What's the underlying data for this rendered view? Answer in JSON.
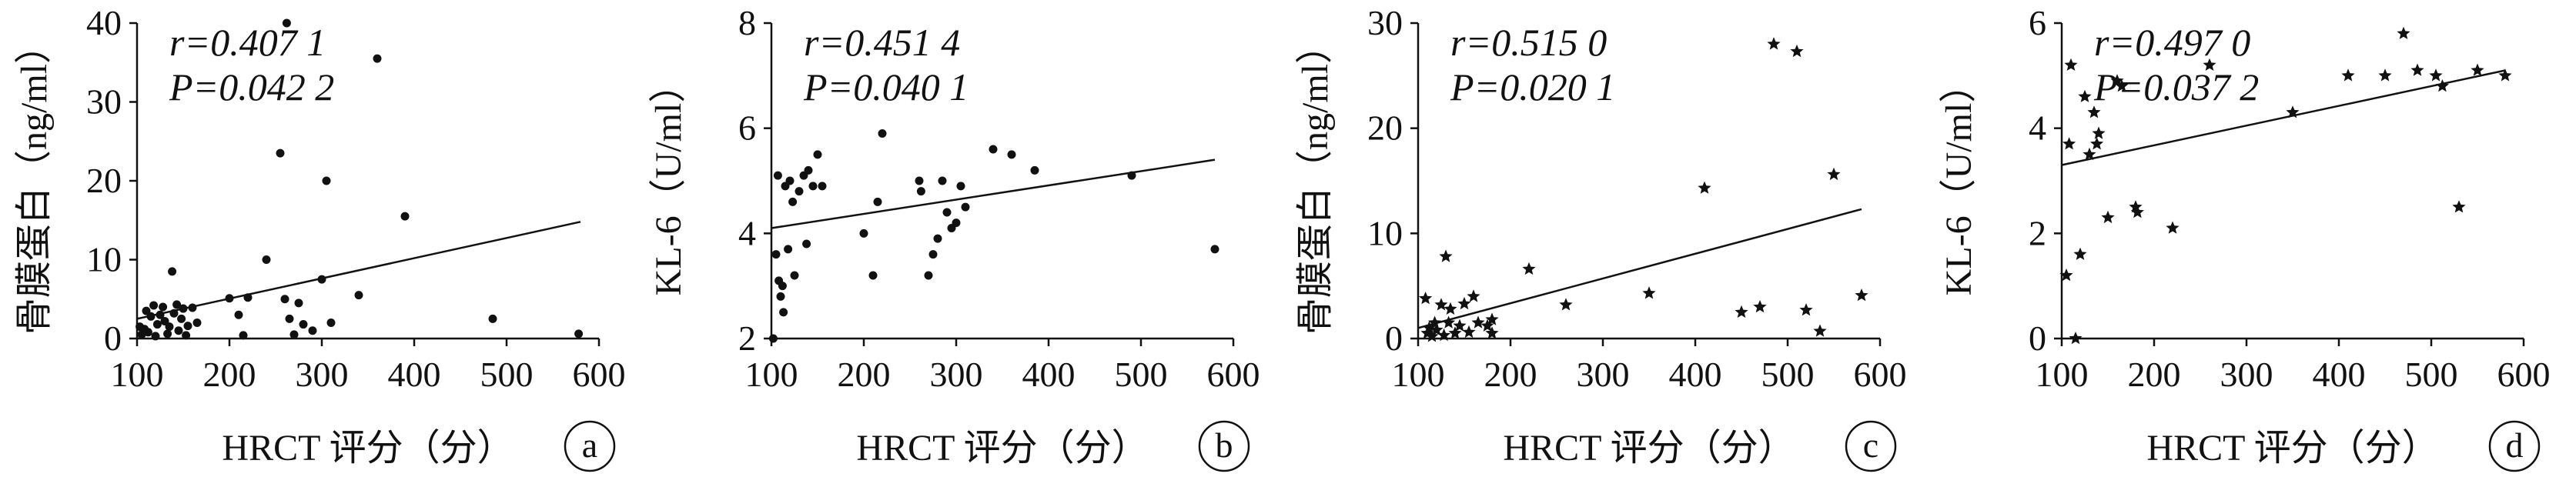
{
  "colors": {
    "ink": "#111111",
    "background": "#ffffff"
  },
  "chart_data": [
    {
      "type": "scatter",
      "panel_label": "a",
      "marker": "dot",
      "xlabel": "HRCT 评分（分）",
      "ylabel": "骨膜蛋白（ng/ml）",
      "stats": [
        "r=0.407 1",
        "P=0.042 2"
      ],
      "xlim": [
        100,
        600
      ],
      "ylim": [
        0,
        40
      ],
      "xticks": [
        "100",
        "200",
        "300",
        "400",
        "500",
        "600"
      ],
      "yticks": [
        "0",
        "10",
        "20",
        "30",
        "40"
      ],
      "trendline": [
        [
          100,
          2.5
        ],
        [
          580,
          14.8
        ]
      ],
      "points": [
        [
          103,
          1.5
        ],
        [
          105,
          0.5
        ],
        [
          108,
          1.2
        ],
        [
          110,
          3.5
        ],
        [
          112,
          0.8
        ],
        [
          115,
          2.8
        ],
        [
          118,
          4.2
        ],
        [
          120,
          0.3
        ],
        [
          122,
          1.8
        ],
        [
          125,
          3.0
        ],
        [
          128,
          4.0
        ],
        [
          130,
          2.2
        ],
        [
          133,
          0.6
        ],
        [
          135,
          1.5
        ],
        [
          138,
          8.5
        ],
        [
          140,
          3.2
        ],
        [
          143,
          4.3
        ],
        [
          145,
          1.0
        ],
        [
          148,
          2.5
        ],
        [
          150,
          3.8
        ],
        [
          153,
          0.4
        ],
        [
          155,
          1.6
        ],
        [
          160,
          3.9
        ],
        [
          165,
          2.0
        ],
        [
          200,
          5.1
        ],
        [
          210,
          3.0
        ],
        [
          215,
          0.4
        ],
        [
          220,
          5.2
        ],
        [
          240,
          10.0
        ],
        [
          255,
          23.5
        ],
        [
          260,
          5.0
        ],
        [
          262,
          40.0
        ],
        [
          265,
          2.5
        ],
        [
          270,
          0.5
        ],
        [
          275,
          4.5
        ],
        [
          280,
          1.8
        ],
        [
          290,
          1.0
        ],
        [
          300,
          7.5
        ],
        [
          305,
          20.0
        ],
        [
          310,
          2.0
        ],
        [
          340,
          5.5
        ],
        [
          360,
          35.5
        ],
        [
          390,
          15.5
        ],
        [
          485,
          2.5
        ],
        [
          578,
          0.6
        ]
      ]
    },
    {
      "type": "scatter",
      "panel_label": "b",
      "marker": "dot",
      "xlabel": "HRCT 评分（分）",
      "ylabel": "KL-6（U/ml）",
      "stats": [
        "r=0.451 4",
        "P=0.040 1"
      ],
      "xlim": [
        100,
        600
      ],
      "ylim": [
        2,
        8
      ],
      "xticks": [
        "100",
        "200",
        "300",
        "400",
        "500",
        "600"
      ],
      "yticks": [
        "2",
        "4",
        "6",
        "8"
      ],
      "trendline": [
        [
          100,
          4.1
        ],
        [
          580,
          5.4
        ]
      ],
      "points": [
        [
          102,
          2.0
        ],
        [
          105,
          3.6
        ],
        [
          107,
          5.1
        ],
        [
          108,
          3.1
        ],
        [
          110,
          2.8
        ],
        [
          112,
          3.0
        ],
        [
          113,
          2.5
        ],
        [
          115,
          4.9
        ],
        [
          118,
          3.7
        ],
        [
          120,
          5.0
        ],
        [
          123,
          4.6
        ],
        [
          125,
          3.2
        ],
        [
          130,
          4.8
        ],
        [
          135,
          5.1
        ],
        [
          138,
          3.8
        ],
        [
          140,
          5.2
        ],
        [
          145,
          4.9
        ],
        [
          150,
          5.5
        ],
        [
          155,
          4.9
        ],
        [
          200,
          4.0
        ],
        [
          210,
          3.2
        ],
        [
          215,
          4.6
        ],
        [
          220,
          5.9
        ],
        [
          260,
          5.0
        ],
        [
          262,
          4.8
        ],
        [
          270,
          3.2
        ],
        [
          275,
          3.6
        ],
        [
          280,
          3.9
        ],
        [
          285,
          5.0
        ],
        [
          290,
          4.4
        ],
        [
          295,
          4.1
        ],
        [
          300,
          4.2
        ],
        [
          305,
          4.9
        ],
        [
          310,
          4.5
        ],
        [
          340,
          5.6
        ],
        [
          360,
          5.5
        ],
        [
          385,
          5.2
        ],
        [
          490,
          5.1
        ],
        [
          580,
          3.7
        ]
      ]
    },
    {
      "type": "scatter",
      "panel_label": "c",
      "marker": "star",
      "xlabel": "HRCT 评分（分）",
      "ylabel": "骨膜蛋白（ng/ml）",
      "stats": [
        "r=0.515 0",
        "P=0.020 1"
      ],
      "xlim": [
        100,
        600
      ],
      "ylim": [
        0,
        30
      ],
      "xticks": [
        "100",
        "200",
        "300",
        "400",
        "500",
        "600"
      ],
      "yticks": [
        "0",
        "10",
        "20",
        "30"
      ],
      "trendline": [
        [
          100,
          1.0
        ],
        [
          580,
          12.3
        ]
      ],
      "points": [
        [
          108,
          3.8
        ],
        [
          110,
          0.5
        ],
        [
          112,
          1.0
        ],
        [
          115,
          0.2
        ],
        [
          118,
          1.5
        ],
        [
          120,
          0.8
        ],
        [
          125,
          3.2
        ],
        [
          128,
          0.3
        ],
        [
          130,
          7.8
        ],
        [
          133,
          1.5
        ],
        [
          135,
          2.8
        ],
        [
          140,
          0.5
        ],
        [
          145,
          1.2
        ],
        [
          150,
          3.3
        ],
        [
          155,
          0.6
        ],
        [
          160,
          4.0
        ],
        [
          165,
          1.5
        ],
        [
          175,
          1.2
        ],
        [
          180,
          0.5
        ],
        [
          180,
          1.8
        ],
        [
          220,
          6.6
        ],
        [
          260,
          3.2
        ],
        [
          350,
          4.3
        ],
        [
          410,
          14.3
        ],
        [
          450,
          2.5
        ],
        [
          470,
          3.0
        ],
        [
          485,
          28.0
        ],
        [
          510,
          27.3
        ],
        [
          520,
          2.7
        ],
        [
          535,
          0.7
        ],
        [
          550,
          15.6
        ],
        [
          580,
          4.1
        ]
      ]
    },
    {
      "type": "scatter",
      "panel_label": "d",
      "marker": "star",
      "xlabel": "HRCT 评分（分）",
      "ylabel": "KL-6（U/ml）",
      "stats": [
        "r=0.497 0",
        "P=0.037 2"
      ],
      "xlim": [
        100,
        600
      ],
      "ylim": [
        0,
        6
      ],
      "xticks": [
        "100",
        "200",
        "300",
        "400",
        "500",
        "600"
      ],
      "yticks": [
        "0",
        "2",
        "4",
        "6"
      ],
      "trendline": [
        [
          100,
          3.3
        ],
        [
          580,
          5.1
        ]
      ],
      "points": [
        [
          105,
          1.2
        ],
        [
          108,
          3.7
        ],
        [
          110,
          5.2
        ],
        [
          115,
          0.0
        ],
        [
          120,
          1.6
        ],
        [
          125,
          4.6
        ],
        [
          130,
          3.5
        ],
        [
          135,
          4.3
        ],
        [
          138,
          3.7
        ],
        [
          140,
          3.9
        ],
        [
          150,
          2.3
        ],
        [
          160,
          4.9
        ],
        [
          165,
          4.8
        ],
        [
          180,
          2.5
        ],
        [
          182,
          2.4
        ],
        [
          220,
          2.1
        ],
        [
          260,
          5.2
        ],
        [
          350,
          4.3
        ],
        [
          410,
          5.0
        ],
        [
          450,
          5.0
        ],
        [
          470,
          5.8
        ],
        [
          485,
          5.1
        ],
        [
          505,
          5.0
        ],
        [
          512,
          4.8
        ],
        [
          530,
          2.5
        ],
        [
          550,
          5.1
        ],
        [
          580,
          5.0
        ]
      ]
    }
  ]
}
